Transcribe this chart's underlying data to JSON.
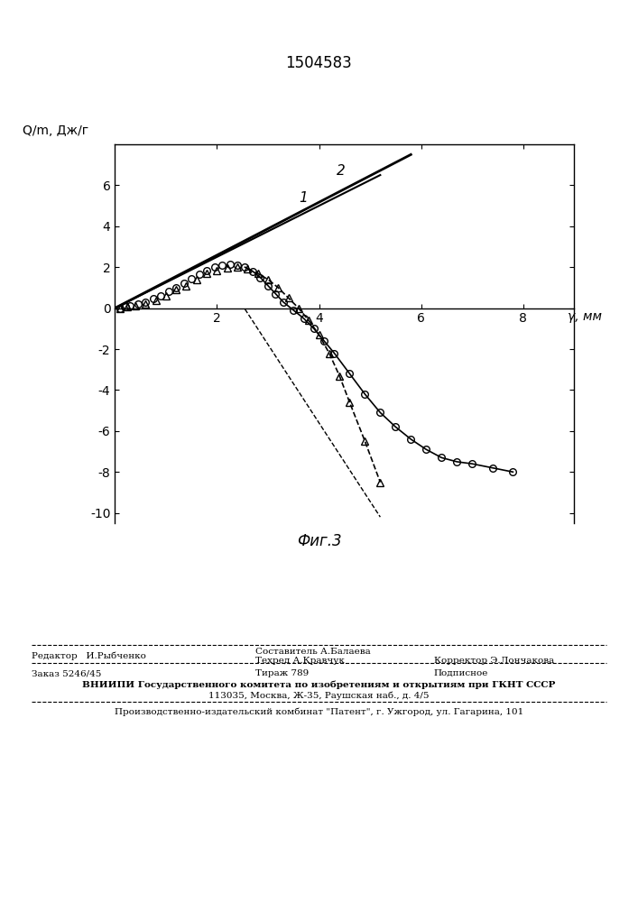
{
  "title": "1504583",
  "ylabel": "Q/m, Дж/г",
  "xlabel": "γ, мм",
  "fig_caption": "Фиг.3",
  "xlim": [
    0,
    9
  ],
  "ylim": [
    -10.5,
    8
  ],
  "xticks": [
    2,
    4,
    6,
    8
  ],
  "yticks": [
    -10,
    -8,
    -6,
    -4,
    -2,
    0,
    2,
    4,
    6
  ],
  "line1_x": [
    0.0,
    5.2
  ],
  "line1_y": [
    0.0,
    6.5
  ],
  "line1_label": "1",
  "line2_x": [
    0.0,
    5.8
  ],
  "line2_y": [
    0.0,
    7.5
  ],
  "line2_label": "2",
  "circles_x": [
    0.1,
    0.2,
    0.3,
    0.45,
    0.6,
    0.75,
    0.9,
    1.05,
    1.2,
    1.35,
    1.5,
    1.65,
    1.8,
    1.95,
    2.1,
    2.25,
    2.4,
    2.55,
    2.7,
    2.85,
    3.0,
    3.15,
    3.3,
    3.5,
    3.7,
    3.9,
    4.1,
    4.3,
    4.6,
    4.9,
    5.2,
    5.5,
    5.8,
    6.1,
    6.4,
    6.7,
    7.0,
    7.4,
    7.8
  ],
  "circles_y": [
    0.0,
    0.05,
    0.1,
    0.2,
    0.3,
    0.45,
    0.6,
    0.8,
    1.0,
    1.2,
    1.45,
    1.65,
    1.85,
    2.0,
    2.1,
    2.15,
    2.1,
    2.0,
    1.8,
    1.5,
    1.1,
    0.7,
    0.3,
    -0.1,
    -0.5,
    -1.0,
    -1.6,
    -2.2,
    -3.2,
    -4.2,
    -5.1,
    -5.8,
    -6.4,
    -6.9,
    -7.3,
    -7.5,
    -7.6,
    -7.8,
    -8.0
  ],
  "triangles_x": [
    0.1,
    0.25,
    0.4,
    0.6,
    0.8,
    1.0,
    1.2,
    1.4,
    1.6,
    1.8,
    2.0,
    2.2,
    2.4,
    2.6,
    2.8,
    3.0,
    3.2,
    3.4,
    3.6,
    3.8,
    4.0,
    4.2,
    4.4,
    4.6,
    4.9,
    5.2
  ],
  "triangles_y": [
    0.0,
    0.05,
    0.1,
    0.2,
    0.4,
    0.6,
    0.9,
    1.1,
    1.4,
    1.7,
    1.85,
    1.95,
    2.0,
    1.9,
    1.7,
    1.4,
    1.0,
    0.5,
    0.0,
    -0.6,
    -1.3,
    -2.2,
    -3.3,
    -4.6,
    -6.5,
    -8.5
  ],
  "dashed_line_x": [
    2.55,
    5.2
  ],
  "dashed_line_y": [
    -0.05,
    -10.2
  ],
  "solid_line2_x": [
    3.1,
    4.55
  ],
  "solid_line2_y": [
    -0.05,
    -4.7
  ],
  "background_color": "#ffffff",
  "line_color": "#000000",
  "marker_color": "#000000"
}
